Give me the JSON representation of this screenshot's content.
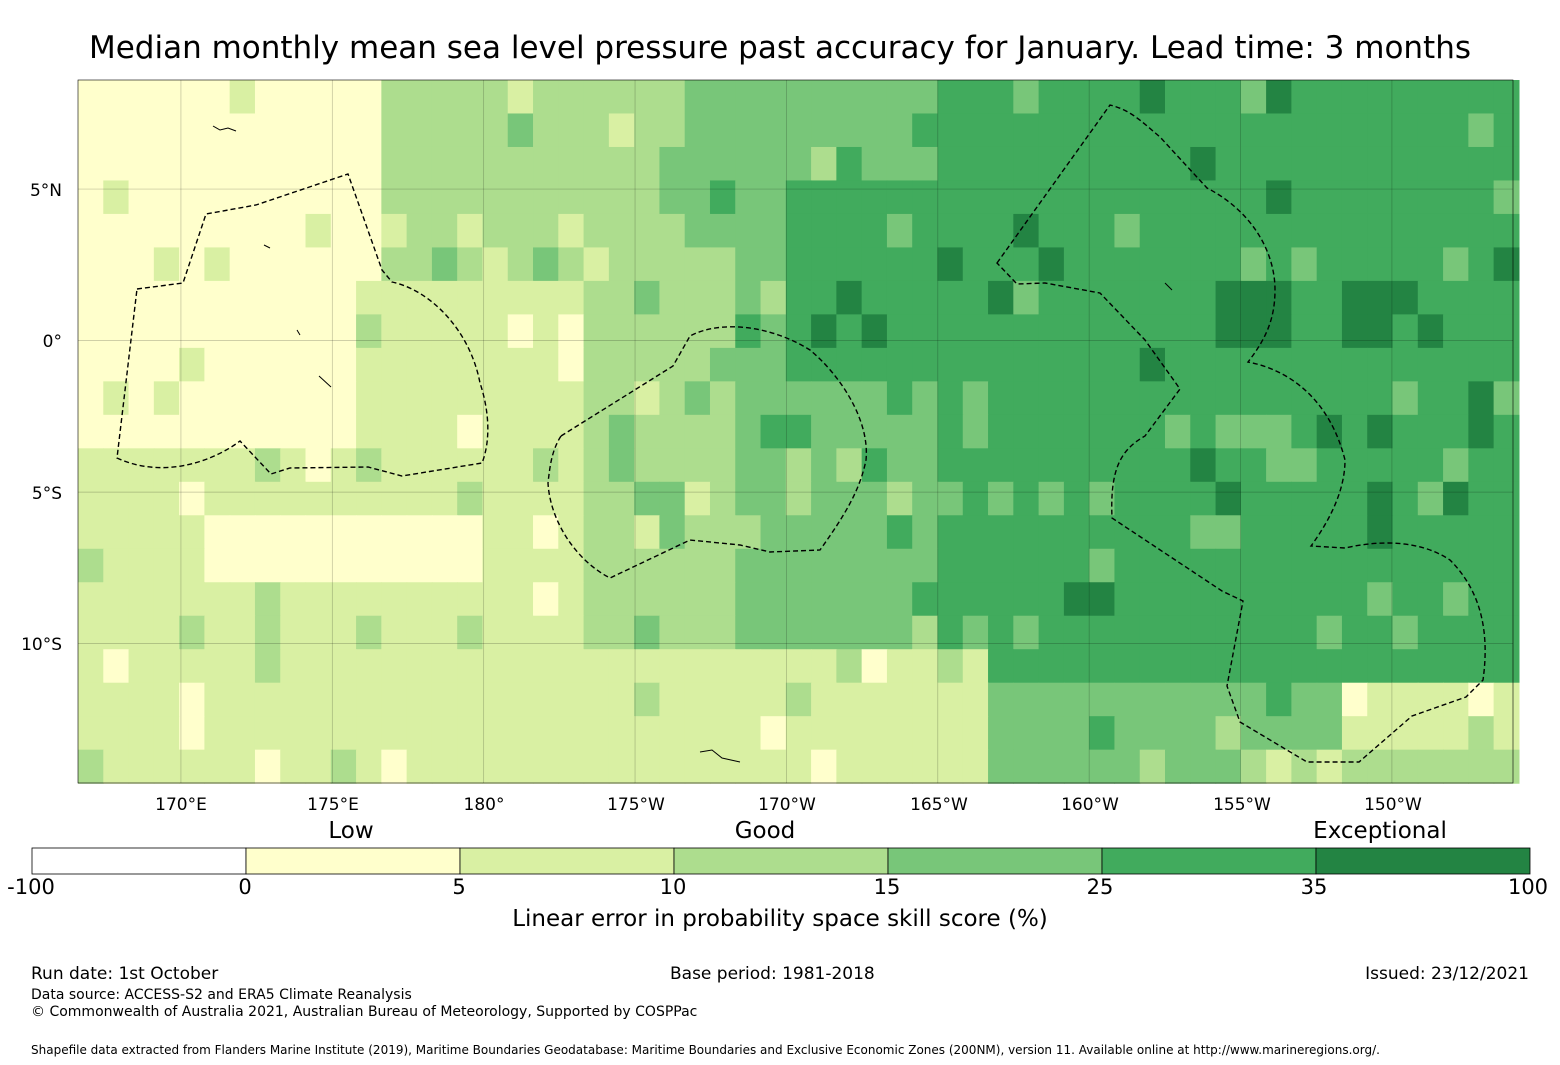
{
  "title": "Median monthly mean sea level pressure past accuracy for January. Lead time: 3 months",
  "map": {
    "lat_ticks": [
      {
        "label": "5°N",
        "value": 5
      },
      {
        "label": "0°",
        "value": 0
      },
      {
        "label": "5°S",
        "value": -5
      },
      {
        "label": "10°S",
        "value": -10
      }
    ],
    "lon_ticks": [
      {
        "label": "170°E",
        "value": 170
      },
      {
        "label": "175°E",
        "value": 175
      },
      {
        "label": "180°",
        "value": 180
      },
      {
        "label": "175°W",
        "value": 185
      },
      {
        "label": "170°W",
        "value": 190
      },
      {
        "label": "165°W",
        "value": 195
      },
      {
        "label": "160°W",
        "value": 200
      },
      {
        "label": "155°W",
        "value": 205
      },
      {
        "label": "150°W",
        "value": 210
      }
    ],
    "extent": {
      "lon_min": 166.6,
      "lon_max": 214.0,
      "lat_min": -14.6,
      "lat_max": 8.6
    }
  },
  "colorbar": {
    "tiers": [
      {
        "label": "Low"
      },
      {
        "label": "Good"
      },
      {
        "label": "Exceptional"
      }
    ],
    "bins": [
      {
        "from": -100,
        "to": 0,
        "color": "#ffffff"
      },
      {
        "from": 0,
        "to": 5,
        "color": "#ffffcc"
      },
      {
        "from": 5,
        "to": 10,
        "color": "#d9f0a3"
      },
      {
        "from": 10,
        "to": 15,
        "color": "#addd8e"
      },
      {
        "from": 15,
        "to": 25,
        "color": "#78c679"
      },
      {
        "from": 25,
        "to": 35,
        "color": "#41ab5d"
      },
      {
        "from": 35,
        "to": 100,
        "color": "#238443"
      }
    ],
    "tick_labels": [
      "-100",
      "0",
      "5",
      "10",
      "15",
      "25",
      "35",
      "100"
    ],
    "label": "Linear error in probability space skill score (%)"
  },
  "footer": {
    "run_date": "Run date: 1st October",
    "base_period": "Base period: 1981-2018",
    "issued": "Issued: 23/12/2021",
    "data_source": "Data source: ACCESS-S2 and ERA5 Climate Reanalysis",
    "copyright": "© Commonwealth of Australia 2021, Australian Bureau of Meteorology, Supported by COSPPac",
    "shapefile": "Shapefile data extracted from Flanders Marine Institute (2019), Maritime Boundaries Geodatabase: Maritime Boundaries and Exclusive Economic Zones (200NM), version 11. Available online at http://www.marineregions.org/."
  },
  "chart_data": {
    "type": "heatmap",
    "title": "Median monthly mean sea level pressure past accuracy for January. Lead time: 3 months",
    "value_label": "Linear error in probability space skill score (%)",
    "category_scale": [
      {
        "category": 0,
        "range": "-100 to 0"
      },
      {
        "category": 1,
        "range": "0 to 5"
      },
      {
        "category": 2,
        "range": "5 to 10"
      },
      {
        "category": 3,
        "range": "10 to 15"
      },
      {
        "category": 4,
        "range": "15 to 25"
      },
      {
        "category": 5,
        "range": "25 to 35"
      },
      {
        "category": 6,
        "range": "35 to 100"
      }
    ],
    "grid": {
      "lon_start": 166.6,
      "lon_step": 0.835,
      "ncols": 57,
      "lat_start": 8.6,
      "lat_step": -1.105,
      "nrows": 21,
      "regions": [
        {
          "category": 1,
          "lon": [
            166.6,
            185.0
          ],
          "lat": [
            -3.5,
            8.6
          ]
        },
        {
          "category": 2,
          "lon": [
            166.6,
            185.0
          ],
          "lat": [
            -14.6,
            -3.5
          ]
        },
        {
          "category": 1,
          "lon": [
            171.0,
            180.0
          ],
          "lat": [
            -8.5,
            -5.5
          ]
        },
        {
          "category": 2,
          "lon": [
            176.0,
            183.0
          ],
          "lat": [
            -4.0,
            1.5
          ]
        },
        {
          "category": 3,
          "lon": [
            177.0,
            190.0
          ],
          "lat": [
            2.0,
            8.6
          ]
        },
        {
          "category": 3,
          "lon": [
            183.0,
            190.0
          ],
          "lat": [
            -10.0,
            2.0
          ]
        },
        {
          "category": 4,
          "lon": [
            187.0,
            196.0
          ],
          "lat": [
            3.0,
            8.6
          ]
        },
        {
          "category": 4,
          "lon": [
            188.5,
            195.0
          ],
          "lat": [
            -10.0,
            3.0
          ]
        },
        {
          "category": 5,
          "lon": [
            195.0,
            214.0
          ],
          "lat": [
            -11.0,
            8.6
          ]
        },
        {
          "category": 5,
          "lon": [
            190.0,
            195.0
          ],
          "lat": [
            -1.0,
            5.5
          ]
        },
        {
          "category": 6,
          "lon": [
            204.5,
            207.0
          ],
          "lat": [
            -0.5,
            1.5
          ]
        },
        {
          "category": 6,
          "lon": [
            208.0,
            210.5
          ],
          "lat": [
            -0.5,
            2.0
          ]
        },
        {
          "category": 2,
          "lon": [
            183.0,
            197.0
          ],
          "lat": [
            -14.6,
            -10.0
          ]
        },
        {
          "category": 4,
          "lon": [
            197.0,
            208.0
          ],
          "lat": [
            -14.6,
            -11.0
          ]
        },
        {
          "category": 3,
          "lon": [
            205.0,
            214.0
          ],
          "lat": [
            -14.6,
            -13.0
          ]
        }
      ]
    },
    "boundary_lines": "dashed EEZ outlines",
    "lat_range": [
      -14.6,
      8.6
    ],
    "lon_range_deg_east": [
      166.6,
      214.0
    ]
  }
}
